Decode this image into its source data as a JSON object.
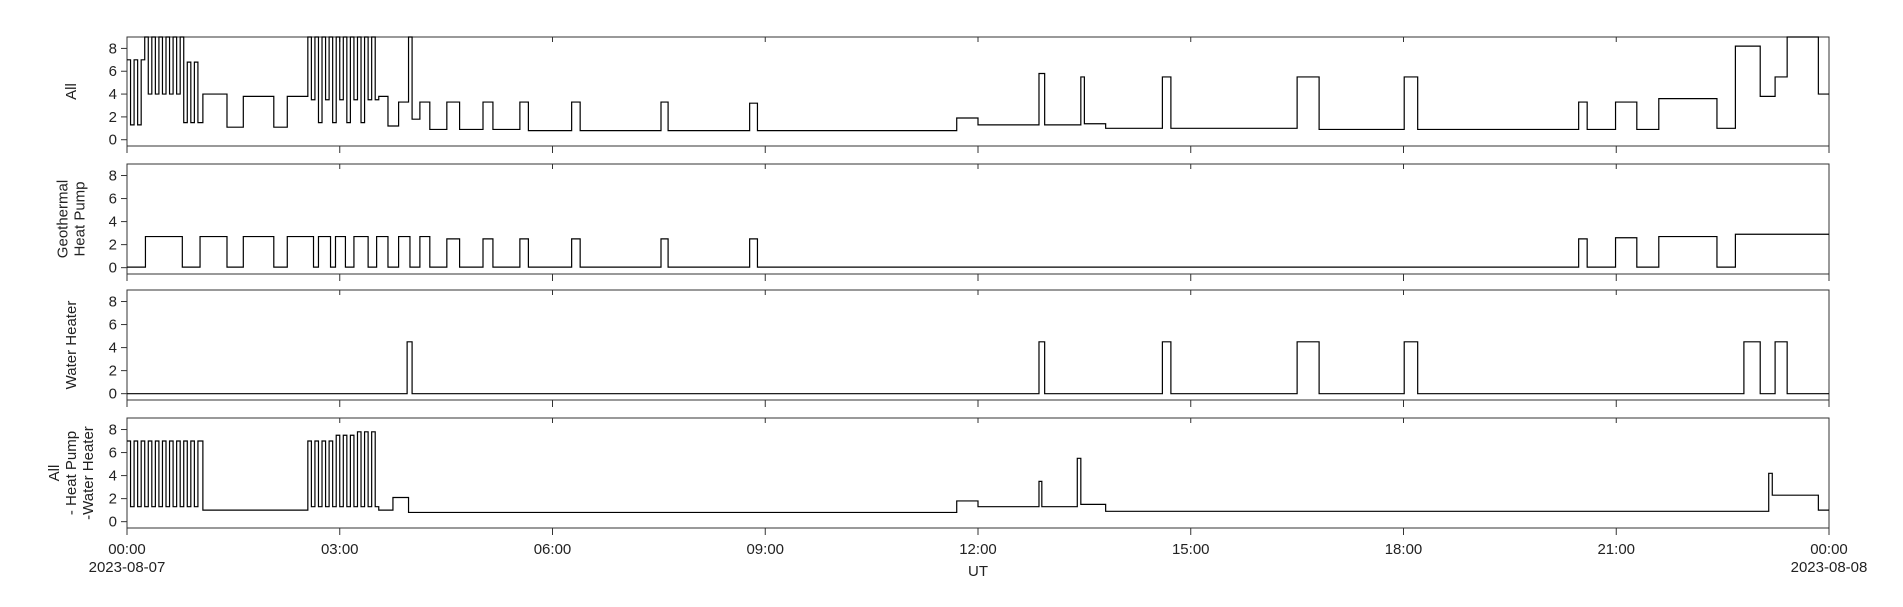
{
  "chart_data": [
    {
      "type": "line",
      "ylabel": [
        "All"
      ],
      "color": "#000000",
      "step": true,
      "ylim": [
        -0.55,
        9
      ],
      "yticks": [
        0,
        2,
        4,
        6,
        8
      ],
      "xlim": [
        0,
        24
      ],
      "xticks": [
        0,
        3,
        6,
        9,
        12,
        15,
        18,
        21,
        24
      ],
      "x": [
        0,
        0.05,
        0.1,
        0.15,
        0.2,
        0.25,
        0.3,
        0.35,
        0.4,
        0.45,
        0.5,
        0.55,
        0.6,
        0.65,
        0.7,
        0.75,
        0.8,
        0.85,
        0.9,
        0.95,
        1.0,
        1.07,
        1.41,
        1.64,
        2.07,
        2.26,
        2.55,
        2.6,
        2.65,
        2.7,
        2.75,
        2.8,
        2.85,
        2.9,
        2.95,
        3.0,
        3.05,
        3.1,
        3.15,
        3.2,
        3.25,
        3.3,
        3.35,
        3.4,
        3.45,
        3.5,
        3.55,
        3.68,
        3.83,
        3.97,
        4.02,
        4.13,
        4.27,
        4.51,
        4.69,
        5.02,
        5.16,
        5.54,
        5.66,
        6.27,
        6.39,
        7.53,
        7.63,
        8.78,
        8.89,
        11.7,
        12.0,
        12.86,
        12.94,
        13.45,
        13.5,
        13.8,
        14.6,
        14.72,
        16.5,
        16.81,
        18.01,
        18.2,
        20.47,
        20.59,
        20.99,
        21.29,
        21.6,
        22.42,
        22.68,
        23.03,
        23.24,
        23.41,
        23.85,
        24
      ],
      "values": [
        7,
        1.3,
        7,
        1.3,
        7,
        9,
        4,
        9,
        4,
        9,
        4,
        9,
        4,
        9,
        4,
        9,
        1.5,
        6.8,
        1.5,
        6.8,
        1.5,
        4,
        1.1,
        3.8,
        1.1,
        3.8,
        9,
        3.5,
        9,
        1.5,
        9,
        3.5,
        9,
        1.5,
        9,
        3.5,
        9,
        1.5,
        9,
        3.5,
        9,
        1.5,
        9,
        3.5,
        9,
        3.5,
        3.8,
        1.2,
        3.3,
        9,
        1.8,
        3.3,
        0.9,
        3.3,
        0.9,
        3.3,
        0.9,
        3.3,
        0.8,
        3.3,
        0.8,
        3.3,
        0.8,
        3.2,
        0.8,
        1.9,
        1.3,
        5.8,
        1.3,
        5.5,
        1.4,
        1.0,
        5.5,
        1.0,
        5.5,
        0.9,
        5.5,
        0.9,
        3.3,
        0.9,
        3.3,
        0.9,
        3.6,
        1.0,
        8.2,
        3.8,
        5.5,
        9,
        4,
        4
      ]
    },
    {
      "type": "line",
      "ylabel": [
        "Geothermal",
        "Heat Pump"
      ],
      "color": "#000000",
      "step": true,
      "ylim": [
        -0.55,
        9
      ],
      "yticks": [
        0,
        2,
        4,
        6,
        8
      ],
      "xlim": [
        0,
        24
      ],
      "xticks": [
        0,
        3,
        6,
        9,
        12,
        15,
        18,
        21,
        24
      ],
      "x": [
        0,
        0.26,
        0.78,
        1.03,
        1.41,
        1.64,
        2.07,
        2.26,
        2.63,
        2.7,
        2.87,
        2.94,
        3.08,
        3.2,
        3.4,
        3.52,
        3.68,
        3.83,
        3.99,
        4.13,
        4.27,
        4.51,
        4.69,
        5.02,
        5.16,
        5.54,
        5.66,
        6.27,
        6.39,
        7.53,
        7.63,
        8.78,
        8.89,
        20.47,
        20.59,
        20.99,
        21.29,
        21.6,
        22.42,
        22.68,
        24
      ],
      "values": [
        0.05,
        2.7,
        0.05,
        2.7,
        0.05,
        2.7,
        0.05,
        2.7,
        0.05,
        2.7,
        0.05,
        2.7,
        0.05,
        2.7,
        0.05,
        2.7,
        0.05,
        2.7,
        0.05,
        2.7,
        0.05,
        2.5,
        0.05,
        2.5,
        0.05,
        2.5,
        0.05,
        2.5,
        0.05,
        2.5,
        0.05,
        2.5,
        0.05,
        2.5,
        0.05,
        2.6,
        0.05,
        2.7,
        0.05,
        2.9,
        2.9
      ]
    },
    {
      "type": "line",
      "ylabel": [
        "Water Heater"
      ],
      "color": "#000000",
      "step": true,
      "ylim": [
        -0.55,
        9
      ],
      "yticks": [
        0,
        2,
        4,
        6,
        8
      ],
      "xlim": [
        0,
        24
      ],
      "xticks": [
        0,
        3,
        6,
        9,
        12,
        15,
        18,
        21,
        24
      ],
      "x": [
        0,
        3.95,
        4.02,
        12.86,
        12.94,
        14.6,
        14.72,
        16.5,
        16.81,
        18.01,
        18.2,
        22.8,
        23.03,
        23.24,
        23.41,
        24
      ],
      "values": [
        0,
        4.5,
        0,
        4.5,
        0,
        4.5,
        0,
        4.5,
        0,
        4.5,
        0,
        4.5,
        0,
        4.5,
        0,
        0
      ]
    },
    {
      "type": "line",
      "ylabel": [
        "All",
        "- Heat Pump",
        "-Water Heater"
      ],
      "color": "#000000",
      "step": true,
      "ylim": [
        -0.55,
        9
      ],
      "yticks": [
        0,
        2,
        4,
        6,
        8
      ],
      "xlim": [
        0,
        24
      ],
      "xlabel": "UT",
      "xticks": [
        {
          "value": 0,
          "label": "00:00"
        },
        {
          "value": 3,
          "label": "03:00"
        },
        {
          "value": 6,
          "label": "06:00"
        },
        {
          "value": 9,
          "label": "09:00"
        },
        {
          "value": 12,
          "label": "12:00"
        },
        {
          "value": 15,
          "label": "15:00"
        },
        {
          "value": 18,
          "label": "18:00"
        },
        {
          "value": 21,
          "label": "21:00"
        },
        {
          "value": 24,
          "label": "00:00"
        }
      ],
      "xdates": [
        {
          "value": 0,
          "label": "2023-08-07"
        },
        {
          "value": 24,
          "label": "2023-08-08"
        }
      ],
      "x": [
        0,
        0.05,
        0.1,
        0.15,
        0.2,
        0.25,
        0.3,
        0.35,
        0.4,
        0.45,
        0.5,
        0.55,
        0.6,
        0.65,
        0.7,
        0.75,
        0.8,
        0.85,
        0.9,
        0.95,
        1.0,
        1.07,
        2.55,
        2.6,
        2.65,
        2.7,
        2.75,
        2.8,
        2.85,
        2.9,
        2.95,
        3.0,
        3.05,
        3.1,
        3.15,
        3.2,
        3.25,
        3.3,
        3.35,
        3.4,
        3.45,
        3.5,
        3.55,
        3.75,
        3.97,
        11.7,
        12.0,
        12.86,
        12.9,
        13.4,
        13.45,
        13.8,
        23.15,
        23.2,
        23.85,
        24
      ],
      "values": [
        7,
        1.3,
        7,
        1.3,
        7,
        1.3,
        7,
        1.3,
        7,
        1.3,
        7,
        1.3,
        7,
        1.3,
        7,
        1.3,
        7,
        1.3,
        7,
        1.3,
        7,
        1.0,
        7,
        1.3,
        7,
        1.3,
        7,
        1.3,
        7,
        1.3,
        7.5,
        1.3,
        7.5,
        1.3,
        7.5,
        1.3,
        7.8,
        1.3,
        7.8,
        1.3,
        7.8,
        1.3,
        1.0,
        2.1,
        0.8,
        1.8,
        1.3,
        3.5,
        1.3,
        5.5,
        1.5,
        0.9,
        4.2,
        2.3,
        1.0,
        1.0
      ]
    }
  ]
}
